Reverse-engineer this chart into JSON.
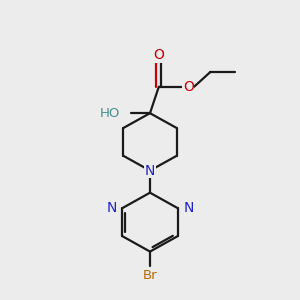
{
  "bg_color": "#ececec",
  "atom_colors": {
    "C": "#1a1a1a",
    "N": "#2020cc",
    "O": "#cc0000",
    "Br": "#b86800",
    "OH_color": "#4a9090"
  },
  "lw": 1.6,
  "fontsize": 9.5
}
